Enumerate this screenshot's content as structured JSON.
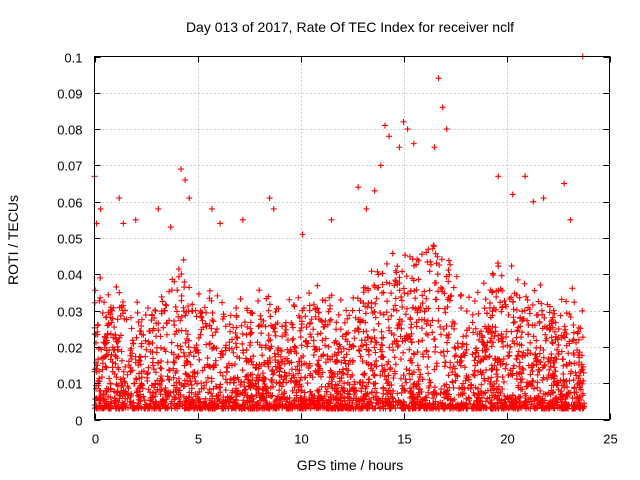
{
  "chart_data": {
    "type": "scatter",
    "title": "Day 013 of 2017, Rate Of TEC Index for receiver nclf",
    "xlabel": "GPS time / hours",
    "ylabel": "ROTI / TECUs",
    "xlim": [
      0,
      25
    ],
    "ylim": [
      0,
      0.1
    ],
    "x_ticks": [
      0,
      5,
      10,
      15,
      20,
      25
    ],
    "x_tick_labels": [
      "0",
      "5",
      "10",
      "15",
      "20",
      "25"
    ],
    "y_ticks": [
      0,
      0.01,
      0.02,
      0.03,
      0.04,
      0.05,
      0.06,
      0.07,
      0.08,
      0.09,
      0.1
    ],
    "y_tick_labels": [
      "0",
      "0.01",
      "0.02",
      "0.03",
      "0.04",
      "0.05",
      "0.06",
      "0.07",
      "0.08",
      "0.09",
      "0.1"
    ],
    "grid": true,
    "marker": "plus",
    "series_color": "#ff0000",
    "series": [
      {
        "profile": [
          [
            0.0,
            0.035
          ],
          [
            0.5,
            0.03
          ],
          [
            1.0,
            0.028
          ],
          [
            1.5,
            0.03
          ],
          [
            2.0,
            0.026
          ],
          [
            2.5,
            0.026
          ],
          [
            3.0,
            0.03
          ],
          [
            3.5,
            0.032
          ],
          [
            4.0,
            0.036
          ],
          [
            4.5,
            0.036
          ],
          [
            5.0,
            0.03
          ],
          [
            5.5,
            0.028
          ],
          [
            6.0,
            0.028
          ],
          [
            6.5,
            0.026
          ],
          [
            7.0,
            0.026
          ],
          [
            7.5,
            0.026
          ],
          [
            8.0,
            0.028
          ],
          [
            8.5,
            0.03
          ],
          [
            9.0,
            0.03
          ],
          [
            9.5,
            0.028
          ],
          [
            10.0,
            0.028
          ],
          [
            10.5,
            0.032
          ],
          [
            11.0,
            0.032
          ],
          [
            11.5,
            0.028
          ],
          [
            12.0,
            0.026
          ],
          [
            12.5,
            0.026
          ],
          [
            13.0,
            0.03
          ],
          [
            13.5,
            0.035
          ],
          [
            14.0,
            0.04
          ],
          [
            14.5,
            0.044
          ],
          [
            15.0,
            0.048
          ],
          [
            15.5,
            0.046
          ],
          [
            16.0,
            0.044
          ],
          [
            16.5,
            0.046
          ],
          [
            17.0,
            0.04
          ],
          [
            17.5,
            0.034
          ],
          [
            18.0,
            0.03
          ],
          [
            18.5,
            0.03
          ],
          [
            19.0,
            0.032
          ],
          [
            19.5,
            0.036
          ],
          [
            20.0,
            0.034
          ],
          [
            20.5,
            0.032
          ],
          [
            21.0,
            0.034
          ],
          [
            21.5,
            0.032
          ],
          [
            22.0,
            0.028
          ],
          [
            22.5,
            0.028
          ],
          [
            23.0,
            0.03
          ],
          [
            23.5,
            0.028
          ],
          [
            23.8,
            0.026
          ]
        ],
        "outliers": [
          [
            0.0,
            0.067
          ],
          [
            0.1,
            0.054
          ],
          [
            0.3,
            0.058
          ],
          [
            1.2,
            0.061
          ],
          [
            1.4,
            0.054
          ],
          [
            2.0,
            0.055
          ],
          [
            3.1,
            0.058
          ],
          [
            3.7,
            0.053
          ],
          [
            4.2,
            0.069
          ],
          [
            4.4,
            0.066
          ],
          [
            4.6,
            0.061
          ],
          [
            5.7,
            0.058
          ],
          [
            6.1,
            0.054
          ],
          [
            7.2,
            0.055
          ],
          [
            8.5,
            0.061
          ],
          [
            8.7,
            0.058
          ],
          [
            10.1,
            0.051
          ],
          [
            11.5,
            0.055
          ],
          [
            12.8,
            0.064
          ],
          [
            13.2,
            0.058
          ],
          [
            13.6,
            0.063
          ],
          [
            13.9,
            0.07
          ],
          [
            14.1,
            0.081
          ],
          [
            14.3,
            0.078
          ],
          [
            14.8,
            0.075
          ],
          [
            15.0,
            0.082
          ],
          [
            15.2,
            0.08
          ],
          [
            15.5,
            0.076
          ],
          [
            16.5,
            0.075
          ],
          [
            16.7,
            0.094
          ],
          [
            16.9,
            0.086
          ],
          [
            17.1,
            0.08
          ],
          [
            19.6,
            0.067
          ],
          [
            20.3,
            0.062
          ],
          [
            20.9,
            0.067
          ],
          [
            21.3,
            0.06
          ],
          [
            21.8,
            0.061
          ],
          [
            22.8,
            0.065
          ],
          [
            23.1,
            0.055
          ],
          [
            23.7,
            0.1
          ]
        ]
      }
    ]
  }
}
